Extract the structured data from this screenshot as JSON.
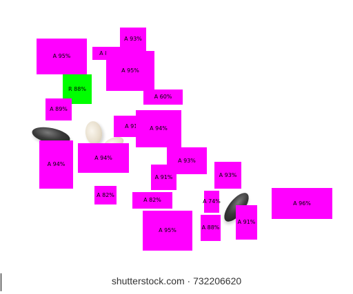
{
  "colors": {
    "accepted": "#ff00ff",
    "rejected": "#00ff00"
  },
  "detections": [
    {
      "id": "d1",
      "label": "A 93%",
      "status": "accepted"
    },
    {
      "id": "d2",
      "label": "A 95%",
      "status": "accepted"
    },
    {
      "id": "d3",
      "label": "A 83%",
      "status": "accepted"
    },
    {
      "id": "d4",
      "label": "A 95%",
      "status": "accepted"
    },
    {
      "id": "d5",
      "label": "R 88%",
      "status": "rejected"
    },
    {
      "id": "d6",
      "label": "A 60%",
      "status": "accepted"
    },
    {
      "id": "d7",
      "label": "A 89%",
      "status": "accepted"
    },
    {
      "id": "d8",
      "label": "A 91%",
      "status": "accepted"
    },
    {
      "id": "d9",
      "label": "A 94%",
      "status": "accepted"
    },
    {
      "id": "d10",
      "label": "A 94%",
      "status": "accepted"
    },
    {
      "id": "d11",
      "label": "A 94%",
      "status": "accepted"
    },
    {
      "id": "d12",
      "label": "A 93%",
      "status": "accepted"
    },
    {
      "id": "d13",
      "label": "A 91%",
      "status": "accepted"
    },
    {
      "id": "d14",
      "label": "A 93%",
      "status": "accepted"
    },
    {
      "id": "d15",
      "label": "A 82%",
      "status": "accepted"
    },
    {
      "id": "d16",
      "label": "A 82%",
      "status": "accepted"
    },
    {
      "id": "d17",
      "label": "A 74%",
      "status": "accepted"
    },
    {
      "id": "d18",
      "label": "A 96%",
      "status": "accepted"
    },
    {
      "id": "d19",
      "label": "A 95%",
      "status": "accepted"
    },
    {
      "id": "d20",
      "label": "A 88%",
      "status": "accepted"
    },
    {
      "id": "d21",
      "label": "A 91%",
      "status": "accepted"
    }
  ],
  "watermark": "shutterstock.com · 732206620"
}
